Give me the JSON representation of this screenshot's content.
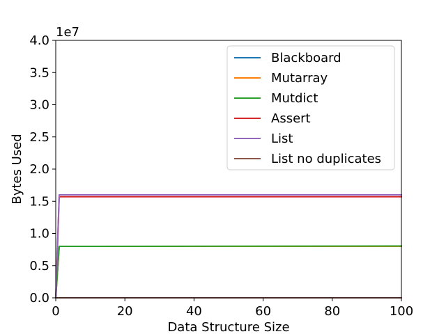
{
  "chart_data": {
    "type": "line",
    "xlabel": "Data Structure Size",
    "ylabel": "Bytes Used",
    "y_offset_label": "1e7",
    "xlim": [
      0,
      100
    ],
    "ylim": [
      0,
      40000000
    ],
    "x_ticks": [
      0,
      20,
      40,
      60,
      80,
      100
    ],
    "x_tick_labels": [
      "0",
      "20",
      "40",
      "60",
      "80",
      "100"
    ],
    "y_ticks": [
      0,
      5000000,
      10000000,
      15000000,
      20000000,
      25000000,
      30000000,
      35000000,
      40000000
    ],
    "y_tick_labels": [
      "0.0",
      "0.5",
      "1.0",
      "1.5",
      "2.0",
      "2.5",
      "3.0",
      "3.5",
      "4.0"
    ],
    "grid": false,
    "legend_position": "top-right",
    "series": [
      {
        "name": "Blackboard",
        "color": "#1f77b4",
        "x": [
          0,
          1,
          100
        ],
        "y": [
          0,
          8000000,
          8000000
        ]
      },
      {
        "name": "Mutarray",
        "color": "#ff7f0e",
        "x": [
          0,
          1,
          100
        ],
        "y": [
          0,
          8000000,
          8000000
        ]
      },
      {
        "name": "Mutdict",
        "color": "#2ca02c",
        "x": [
          0,
          1,
          100
        ],
        "y": [
          0,
          8000000,
          8050000
        ]
      },
      {
        "name": "Assert",
        "color": "#d62728",
        "x": [
          0,
          1,
          100
        ],
        "y": [
          0,
          15700000,
          15700000
        ]
      },
      {
        "name": "List",
        "color": "#9467bd",
        "x": [
          0,
          1,
          100
        ],
        "y": [
          0,
          16000000,
          16000000
        ]
      },
      {
        "name": "List no duplicates",
        "color": "#8c564b",
        "x": [
          0,
          100
        ],
        "y": [
          0,
          0
        ]
      }
    ]
  }
}
